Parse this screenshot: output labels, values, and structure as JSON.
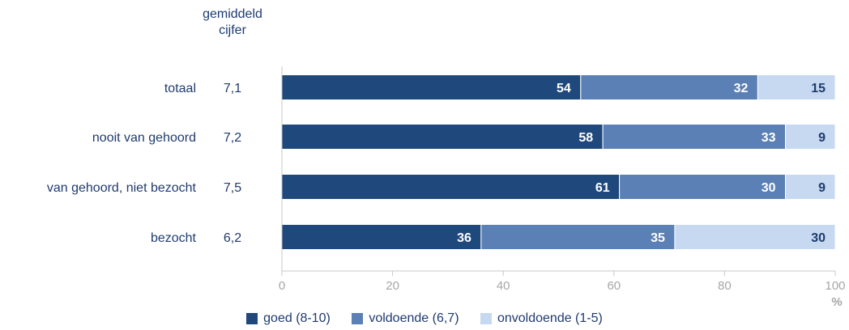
{
  "chart_data": {
    "type": "bar",
    "orientation": "horizontal",
    "stacked": true,
    "column_header": [
      "gemiddeld",
      "cijfer"
    ],
    "categories": [
      "totaal",
      "nooit van gehoord",
      "van gehoord, niet bezocht",
      "bezocht"
    ],
    "averages": [
      "7,1",
      "7,2",
      "7,5",
      "6,2"
    ],
    "series": [
      {
        "name": "goed (8-10)",
        "values": [
          54,
          58,
          61,
          36
        ],
        "color": "#1f497d"
      },
      {
        "name": "voldoende (6,7)",
        "values": [
          32,
          33,
          30,
          35
        ],
        "color": "#5b80b5"
      },
      {
        "name": "onvoldoende (1-5)",
        "values": [
          15,
          9,
          9,
          30
        ],
        "color": "#c6d9f0"
      }
    ],
    "xlim": [
      0,
      100
    ],
    "xticks": [
      "0",
      "20",
      "40",
      "60",
      "80",
      "100"
    ],
    "xlabel": "%",
    "grid": false,
    "legend_position": "bottom"
  }
}
